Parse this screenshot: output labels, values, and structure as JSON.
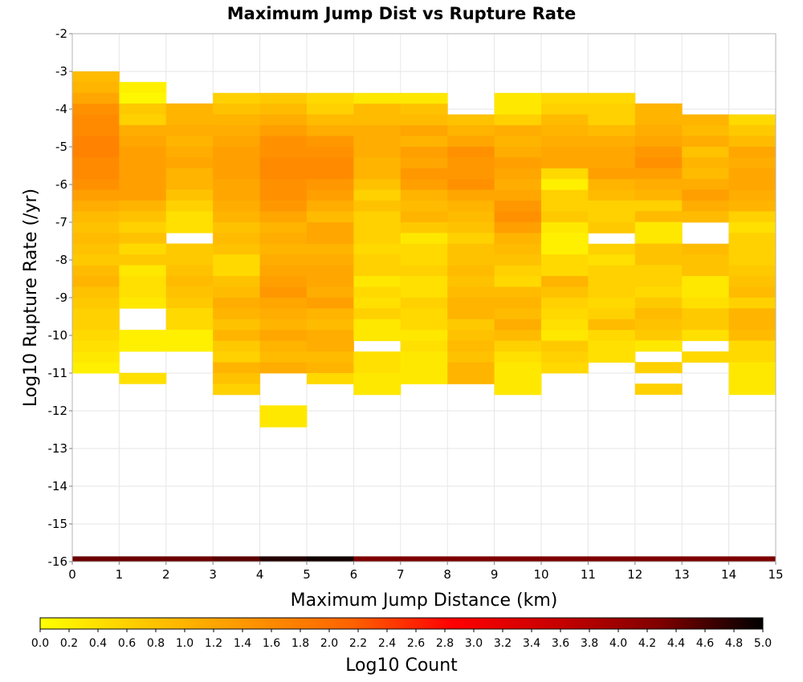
{
  "chart_data": {
    "type": "heatmap",
    "title": "Maximum Jump Dist vs Rupture Rate",
    "xlabel": "Maximum Jump Distance (km)",
    "ylabel": "Log10 Rupture Rate (/yr)",
    "xlim": [
      0,
      15
    ],
    "ylim": [
      -16,
      -2
    ],
    "x_ticks": [
      "0",
      "1",
      "2",
      "3",
      "4",
      "5",
      "6",
      "7",
      "8",
      "9",
      "10",
      "11",
      "12",
      "13",
      "14",
      "15"
    ],
    "y_ticks": [
      "-2",
      "-3",
      "-4",
      "-5",
      "-6",
      "-7",
      "-8",
      "-9",
      "-10",
      "-11",
      "-12",
      "-13",
      "-14",
      "-15",
      "-16"
    ],
    "grid": true,
    "x_bin_width": 1,
    "y_bin_height": 0.285714,
    "colorbar": {
      "label": "Log10 Count",
      "min": 0,
      "max": 5,
      "ticks": [
        "0.0",
        "0.2",
        "0.4",
        "0.6",
        "0.8",
        "1.0",
        "1.2",
        "1.4",
        "1.6",
        "1.8",
        "2.0",
        "2.2",
        "2.4",
        "2.6",
        "2.8",
        "3.0",
        "3.2",
        "3.4",
        "3.6",
        "3.8",
        "4.0",
        "4.2",
        "4.4",
        "4.6",
        "4.8",
        "5.0"
      ],
      "colors": [
        "#ffff00",
        "#ffc800",
        "#ff9600",
        "#ff6400",
        "#ff0000",
        "#c80000",
        "#800000",
        "#000000"
      ]
    },
    "columns": [
      {
        "x": 0,
        "y_start": -3.0,
        "values": [
          0.9,
          1.0,
          1.2,
          1.5,
          1.6,
          1.6,
          1.7,
          1.7,
          1.6,
          1.6,
          1.5,
          1.3,
          1.1,
          0.9,
          0.8,
          0.9,
          0.8,
          0.7,
          0.9,
          1.0,
          0.8,
          0.7,
          0.6,
          0.6,
          0.5,
          0.4,
          0.3,
          0.2
        ]
      },
      {
        "x": 1,
        "y_start": -3.28,
        "values": [
          0.2,
          0.1,
          0.7,
          0.6,
          1.1,
          1.2,
          1.3,
          1.3,
          1.3,
          1.3,
          1.3,
          1.0,
          0.8,
          0.6,
          0.8,
          0.5,
          0.7,
          0.3,
          0.4,
          0.4,
          0.3,
          null,
          null,
          0.2,
          0.2,
          null,
          null,
          0.4
        ]
      },
      {
        "x": 2,
        "y_start": -3.85,
        "values": [
          1.0,
          1.0,
          1.1,
          1.0,
          1.1,
          1.2,
          1.0,
          1.0,
          0.8,
          0.6,
          0.4,
          0.4,
          null,
          0.7,
          0.7,
          0.8,
          0.9,
          0.8,
          0.7,
          0.5,
          0.5,
          0.2,
          0.2
        ]
      },
      {
        "x": 3,
        "y_start": -3.57,
        "values": [
          0.6,
          0.8,
          1.0,
          1.1,
          1.2,
          1.3,
          1.3,
          1.3,
          1.2,
          1.2,
          1.1,
          1.0,
          0.8,
          0.9,
          0.8,
          0.5,
          0.5,
          0.8,
          0.9,
          1.1,
          1.0,
          0.8,
          1.0,
          0.7,
          0.6,
          1.0,
          0.8,
          0.6
        ]
      },
      {
        "x": 4,
        "y_start": -3.57,
        "values": [
          0.7,
          0.9,
          1.1,
          1.3,
          1.5,
          1.5,
          1.6,
          1.6,
          1.5,
          1.5,
          1.4,
          1.2,
          1.0,
          1.1,
          1.0,
          1.1,
          1.2,
          1.3,
          1.4,
          1.2,
          1.1,
          1.0,
          1.2,
          1.0,
          0.9,
          1.1,
          null,
          null,
          null,
          0.3,
          0.3
        ]
      },
      {
        "x": 5,
        "y_start": -3.57,
        "values": [
          0.5,
          0.6,
          0.9,
          1.1,
          1.4,
          1.5,
          1.6,
          1.6,
          1.4,
          1.3,
          1.1,
          0.9,
          1.2,
          1.2,
          1.0,
          1.1,
          1.2,
          1.2,
          1.1,
          1.3,
          1.0,
          0.9,
          1.1,
          1.1,
          0.9,
          1.0,
          0.5
        ]
      },
      {
        "x": 6,
        "y_start": -3.57,
        "values": [
          0.3,
          0.9,
          0.9,
          1.1,
          1.1,
          1.1,
          1.0,
          1.0,
          0.8,
          0.6,
          0.8,
          0.6,
          0.6,
          0.6,
          0.5,
          0.6,
          0.6,
          0.3,
          0.5,
          0.4,
          0.6,
          0.3,
          0.3,
          null,
          0.4,
          0.4,
          0.3,
          0.3
        ]
      },
      {
        "x": 7,
        "y_start": -3.57,
        "values": [
          0.3,
          0.8,
          0.9,
          1.2,
          1.0,
          1.3,
          1.2,
          1.4,
          1.3,
          1.0,
          0.9,
          1.0,
          0.7,
          0.3,
          0.5,
          0.5,
          0.6,
          0.4,
          0.4,
          0.6,
          0.5,
          0.5,
          0.3,
          0.4,
          0.3,
          0.3,
          0.3
        ]
      },
      {
        "x": 8,
        "y_start": -4.14,
        "values": [
          0.8,
          1.0,
          1.2,
          1.5,
          1.4,
          1.4,
          1.5,
          1.2,
          1.0,
          0.9,
          0.8,
          0.6,
          0.8,
          0.8,
          0.9,
          0.8,
          0.9,
          1.0,
          1.0,
          0.7,
          0.8,
          0.9,
          0.8,
          1.0,
          1.0
        ]
      },
      {
        "x": 9,
        "y_start": -3.57,
        "values": [
          0.3,
          0.3,
          0.6,
          1.1,
          1.0,
          1.1,
          1.3,
          1.2,
          1.1,
          1.2,
          1.4,
          1.5,
          1.3,
          1.0,
          0.9,
          0.8,
          0.6,
          0.5,
          0.9,
          1.0,
          0.9,
          1.1,
          0.9,
          0.6,
          0.4,
          0.3,
          0.3,
          0.3
        ]
      },
      {
        "x": 10,
        "y_start": -3.57,
        "values": [
          0.5,
          0.6,
          0.9,
          1.0,
          1.1,
          1.2,
          1.2,
          0.5,
          0.2,
          0.6,
          0.6,
          0.7,
          0.3,
          0.2,
          0.2,
          0.5,
          0.5,
          1.0,
          0.8,
          0.6,
          0.5,
          0.4,
          0.3,
          0.7,
          0.6,
          0.5
        ]
      },
      {
        "x": 11,
        "y_start": -3.57,
        "values": [
          0.5,
          0.6,
          0.6,
          0.9,
          1.1,
          1.2,
          1.2,
          1.3,
          1.0,
          0.9,
          0.6,
          0.6,
          0.7,
          null,
          0.6,
          0.4,
          0.6,
          0.6,
          0.6,
          0.5,
          0.6,
          0.9,
          0.5,
          0.4,
          0.4
        ]
      },
      {
        "x": 12,
        "y_start": -3.85,
        "values": [
          1.0,
          1.0,
          1.1,
          1.2,
          1.4,
          1.5,
          1.3,
          1.1,
          1.0,
          0.6,
          0.9,
          0.3,
          0.3,
          0.8,
          0.8,
          0.6,
          0.6,
          0.5,
          0.7,
          0.9,
          0.8,
          0.7,
          0.3,
          null,
          0.6,
          null,
          0.6
        ]
      },
      {
        "x": 13,
        "y_start": -4.14,
        "values": [
          1.0,
          0.9,
          1.1,
          0.8,
          1.0,
          0.9,
          1.1,
          1.3,
          1.1,
          0.9,
          null,
          null,
          0.9,
          0.8,
          0.8,
          0.3,
          0.3,
          0.4,
          0.7,
          0.7,
          0.4,
          null,
          0.5
        ]
      },
      {
        "x": 14,
        "y_start": -4.14,
        "values": [
          0.5,
          0.7,
          0.9,
          1.2,
          1.1,
          1.2,
          1.2,
          1.1,
          1.0,
          0.6,
          0.4,
          0.6,
          0.6,
          0.6,
          0.7,
          0.8,
          0.9,
          0.6,
          1.0,
          1.0,
          0.9,
          0.5,
          0.5,
          0.3,
          0.3,
          0.3
        ]
      }
    ],
    "bottom_row": {
      "y_start": -16.0,
      "height": 0.14,
      "values": [
        4.4,
        4.4,
        4.4,
        4.5,
        4.8,
        4.9,
        4.3,
        4.3,
        4.3,
        4.3,
        4.3,
        4.3,
        4.3,
        4.3,
        4.3
      ]
    }
  }
}
